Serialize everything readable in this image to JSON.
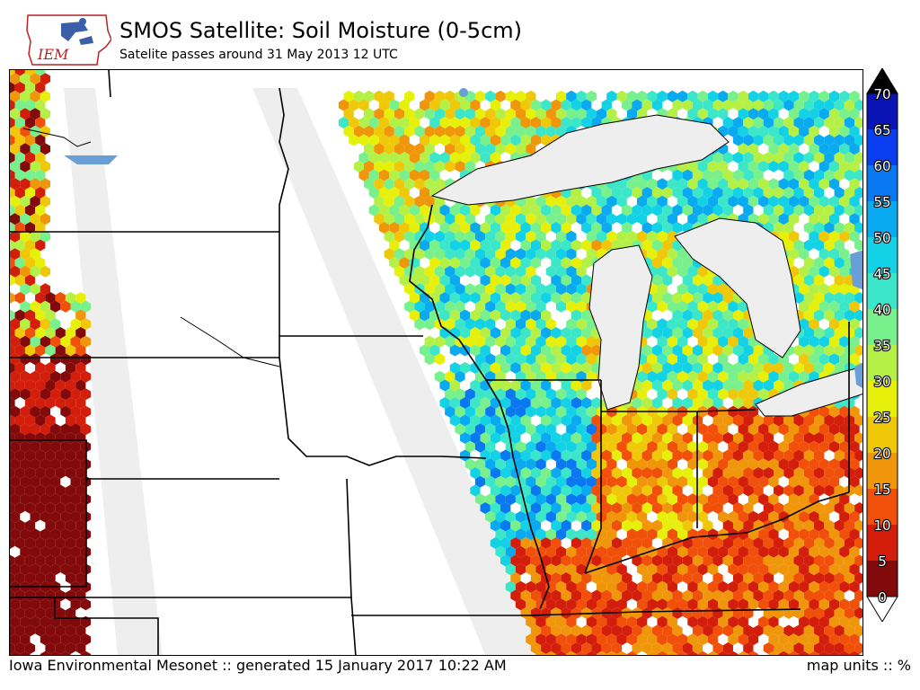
{
  "header": {
    "logo_text": "IEM",
    "title": "SMOS Satellite: Soil Moisture (0-5cm)",
    "subtitle": "Satelite passes around 31 May 2013 12 UTC"
  },
  "footer": {
    "credit": "Iowa Environmental Mesonet :: generated 15 January 2017 10:22 AM",
    "units": "map units :: %"
  },
  "colorbar": {
    "ticks": [
      "70",
      "65",
      "60",
      "55",
      "50",
      "45",
      "40",
      "35",
      "30",
      "25",
      "20",
      "15",
      "10",
      "5",
      "0"
    ],
    "colors": [
      "#08087a",
      "#0a14b4",
      "#0a3cf0",
      "#0a78f0",
      "#0aaaf0",
      "#14d2e6",
      "#3ce6c8",
      "#78f08c",
      "#b4f046",
      "#e6f00a",
      "#f0c80a",
      "#f0960a",
      "#f0500a",
      "#d21e0a",
      "#820a0a"
    ],
    "over_color": "#000000",
    "under_color": "#ffffff"
  },
  "map": {
    "land_color": "#ffffff",
    "swath_gap_color": "#eeeeee",
    "lake_color": "#eeeeee",
    "water_color": "#6a9ed6"
  }
}
